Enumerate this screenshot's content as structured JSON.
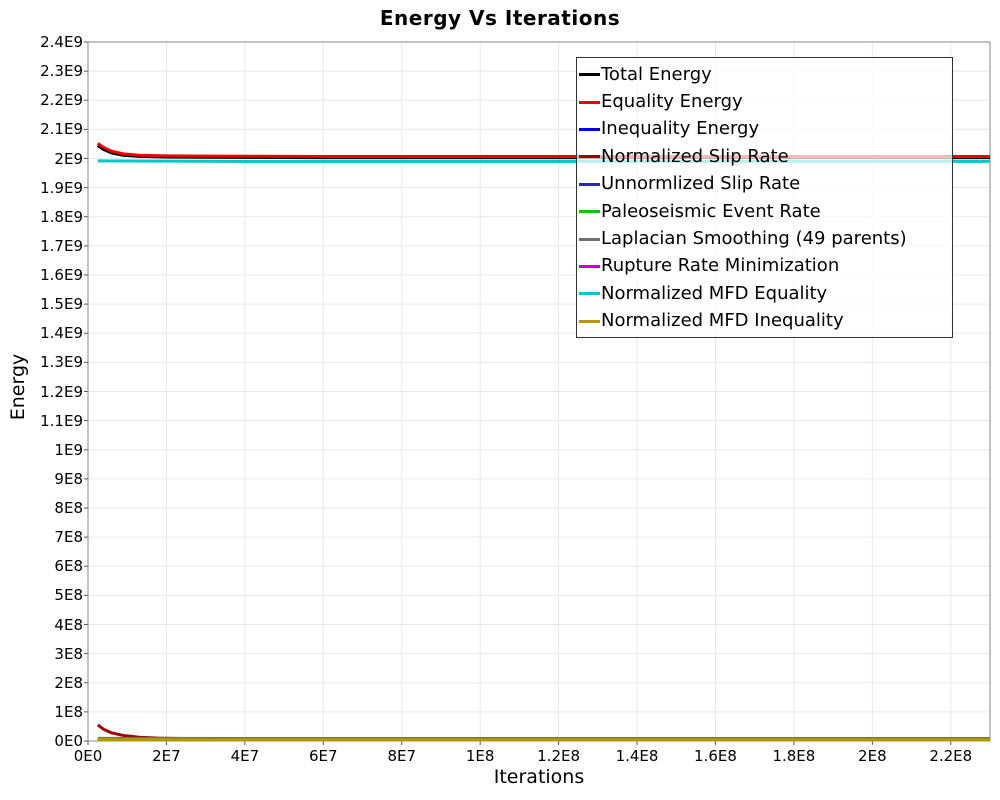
{
  "chart_data": {
    "type": "line",
    "title": "Energy Vs Iterations",
    "xlabel": "Iterations",
    "ylabel": "Energy",
    "xlim": [
      0,
      230000000
    ],
    "ylim": [
      0,
      2400000000
    ],
    "grid": true,
    "legend_position": "top-right-inside",
    "x_ticks": [
      {
        "value": 0,
        "label": "0E0"
      },
      {
        "value": 20000000,
        "label": "2E7"
      },
      {
        "value": 40000000,
        "label": "4E7"
      },
      {
        "value": 60000000,
        "label": "6E7"
      },
      {
        "value": 80000000,
        "label": "8E7"
      },
      {
        "value": 100000000,
        "label": "1E8"
      },
      {
        "value": 120000000,
        "label": "1.2E8"
      },
      {
        "value": 140000000,
        "label": "1.4E8"
      },
      {
        "value": 160000000,
        "label": "1.6E8"
      },
      {
        "value": 180000000,
        "label": "1.8E8"
      },
      {
        "value": 200000000,
        "label": "2E8"
      },
      {
        "value": 220000000,
        "label": "2.2E8"
      }
    ],
    "y_ticks": [
      {
        "value": 0,
        "label": "0E0"
      },
      {
        "value": 100000000,
        "label": "1E8"
      },
      {
        "value": 200000000,
        "label": "2E8"
      },
      {
        "value": 300000000,
        "label": "3E8"
      },
      {
        "value": 400000000,
        "label": "4E8"
      },
      {
        "value": 500000000,
        "label": "5E8"
      },
      {
        "value": 600000000,
        "label": "6E8"
      },
      {
        "value": 700000000,
        "label": "7E8"
      },
      {
        "value": 800000000,
        "label": "8E8"
      },
      {
        "value": 900000000,
        "label": "9E8"
      },
      {
        "value": 1000000000,
        "label": "1E9"
      },
      {
        "value": 1100000000,
        "label": "1.1E9"
      },
      {
        "value": 1200000000,
        "label": "1.2E9"
      },
      {
        "value": 1300000000,
        "label": "1.3E9"
      },
      {
        "value": 1400000000,
        "label": "1.4E9"
      },
      {
        "value": 1500000000,
        "label": "1.5E9"
      },
      {
        "value": 1600000000,
        "label": "1.6E9"
      },
      {
        "value": 1700000000,
        "label": "1.7E9"
      },
      {
        "value": 1800000000,
        "label": "1.8E9"
      },
      {
        "value": 1900000000,
        "label": "1.9E9"
      },
      {
        "value": 2000000000,
        "label": "2E9"
      },
      {
        "value": 2100000000,
        "label": "2.1E9"
      },
      {
        "value": 2200000000,
        "label": "2.2E9"
      },
      {
        "value": 2300000000,
        "label": "2.3E9"
      },
      {
        "value": 2400000000,
        "label": "2.4E9"
      }
    ],
    "series": [
      {
        "name": "Total Energy",
        "color": "#000000",
        "width": 3.5,
        "points": [
          [
            2500000,
            2045000000
          ],
          [
            4000000,
            2032000000
          ],
          [
            6000000,
            2020000000
          ],
          [
            9000000,
            2012000000
          ],
          [
            13000000,
            2008000000
          ],
          [
            20000000,
            2006000000
          ],
          [
            30000000,
            2005000000
          ],
          [
            60000000,
            2004000000
          ],
          [
            120000000,
            2004000000
          ],
          [
            230000000,
            2004000000
          ]
        ]
      },
      {
        "name": "Equality Energy",
        "color": "#ee0000",
        "width": 3,
        "points": [
          [
            2500000,
            2052000000
          ],
          [
            4000000,
            2038000000
          ],
          [
            6000000,
            2025000000
          ],
          [
            9000000,
            2016000000
          ],
          [
            13000000,
            2011000000
          ],
          [
            20000000,
            2009000000
          ],
          [
            30000000,
            2008000000
          ],
          [
            60000000,
            2007000000
          ],
          [
            120000000,
            2007000000
          ],
          [
            230000000,
            2007000000
          ]
        ]
      },
      {
        "name": "Inequality Energy",
        "color": "#0000ee",
        "width": 3,
        "points": [
          [
            2500000,
            3000000
          ],
          [
            40000000,
            2000000
          ],
          [
            230000000,
            2000000
          ]
        ]
      },
      {
        "name": "Normalized Slip Rate",
        "color": "#a00000",
        "width": 3,
        "points": [
          [
            2500000,
            55000000
          ],
          [
            4000000,
            40000000
          ],
          [
            6000000,
            28000000
          ],
          [
            9000000,
            19000000
          ],
          [
            13000000,
            13000000
          ],
          [
            18000000,
            10000000
          ],
          [
            25000000,
            8000000
          ],
          [
            40000000,
            7000000
          ],
          [
            80000000,
            6500000
          ],
          [
            230000000,
            6500000
          ]
        ]
      },
      {
        "name": "Unnormlized Slip Rate",
        "color": "#2828b4",
        "width": 3,
        "points": [
          [
            2500000,
            4000000
          ],
          [
            40000000,
            3500000
          ],
          [
            230000000,
            3500000
          ]
        ]
      },
      {
        "name": "Paleoseismic Event Rate",
        "color": "#00c800",
        "width": 3,
        "points": [
          [
            2500000,
            7500000
          ],
          [
            40000000,
            7000000
          ],
          [
            230000000,
            7000000
          ]
        ]
      },
      {
        "name": "Laplacian Smoothing (49 parents)",
        "color": "#707070",
        "width": 3,
        "points": [
          [
            2500000,
            9000000
          ],
          [
            40000000,
            8500000
          ],
          [
            230000000,
            8500000
          ]
        ]
      },
      {
        "name": "Rupture Rate Minimization",
        "color": "#cc00cc",
        "width": 3,
        "points": [
          [
            2500000,
            1500000
          ],
          [
            230000000,
            1500000
          ]
        ]
      },
      {
        "name": "Normalized MFD Equality",
        "color": "#00c8c8",
        "width": 3,
        "points": [
          [
            2500000,
            1992000000
          ],
          [
            40000000,
            1990000000
          ],
          [
            230000000,
            1990000000
          ]
        ]
      },
      {
        "name": "Normalized MFD Inequality",
        "color": "#b8960b",
        "width": 3,
        "points": [
          [
            2500000,
            5000000
          ],
          [
            40000000,
            4500000
          ],
          [
            230000000,
            4500000
          ]
        ]
      }
    ]
  }
}
